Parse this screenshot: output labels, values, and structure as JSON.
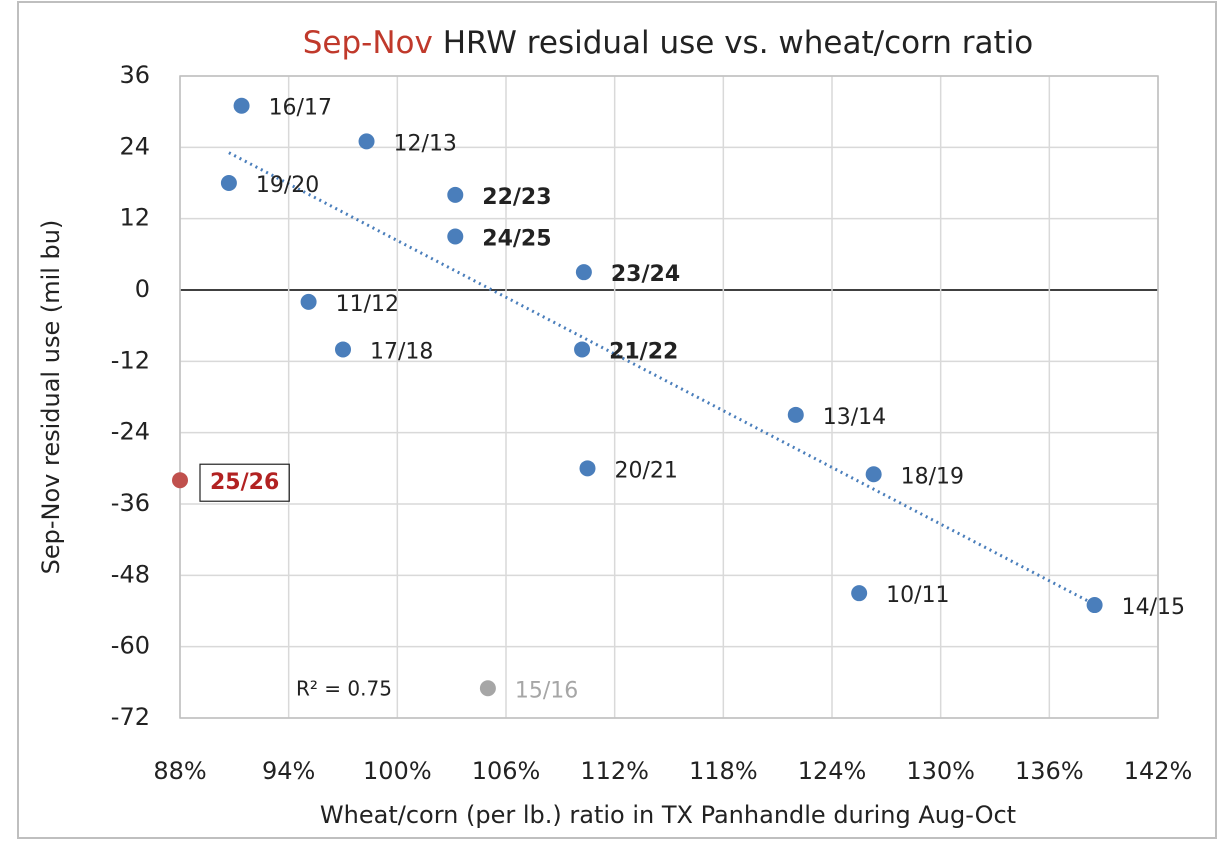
{
  "chart_data": {
    "type": "scatter",
    "title_highlight": "Sep-Nov",
    "title": "HRW residual use vs. wheat/corn ratio",
    "title_highlight_color": "#c0392b",
    "x_label": "Wheat/corn (per lb.) ratio in TX Panhandle during Aug-Oct",
    "y_label": "Sep-Nov residual use (mil bu)",
    "xlim": [
      88,
      142
    ],
    "xticks": [
      {
        "value": 88,
        "label": "88%"
      },
      {
        "value": 94,
        "label": "94%"
      },
      {
        "value": 100,
        "label": "100%"
      },
      {
        "value": 106,
        "label": "106%"
      },
      {
        "value": 112,
        "label": "112%"
      },
      {
        "value": 118,
        "label": "118%"
      },
      {
        "value": 124,
        "label": "124%"
      },
      {
        "value": 130,
        "label": "130%"
      },
      {
        "value": 136,
        "label": "136%"
      },
      {
        "value": 142,
        "label": "142%"
      }
    ],
    "ylim": [
      -72,
      36
    ],
    "yticks": [
      -72,
      -60,
      -48,
      -36,
      -24,
      -12,
      0,
      12,
      24,
      36
    ],
    "grid": true,
    "points": [
      {
        "label": "16/17",
        "x": 91.4,
        "y": 31,
        "color": "#4a7ebb",
        "label_color": "#222222",
        "bold": false
      },
      {
        "label": "12/13",
        "x": 98.3,
        "y": 25,
        "color": "#4a7ebb",
        "label_color": "#222222",
        "bold": false
      },
      {
        "label": "19/20",
        "x": 90.7,
        "y": 18,
        "color": "#4a7ebb",
        "label_color": "#222222",
        "bold": false
      },
      {
        "label": "22/23",
        "x": 103.2,
        "y": 16,
        "color": "#4a7ebb",
        "label_color": "#222222",
        "bold": true
      },
      {
        "label": "24/25",
        "x": 103.2,
        "y": 9,
        "color": "#4a7ebb",
        "label_color": "#222222",
        "bold": true
      },
      {
        "label": "23/24",
        "x": 110.3,
        "y": 3,
        "color": "#4a7ebb",
        "label_color": "#222222",
        "bold": true
      },
      {
        "label": "11/12",
        "x": 95.1,
        "y": -2,
        "color": "#4a7ebb",
        "label_color": "#222222",
        "bold": false
      },
      {
        "label": "17/18",
        "x": 97.0,
        "y": -10,
        "color": "#4a7ebb",
        "label_color": "#222222",
        "bold": false
      },
      {
        "label": "21/22",
        "x": 110.2,
        "y": -10,
        "color": "#4a7ebb",
        "label_color": "#222222",
        "bold": true
      },
      {
        "label": "13/14",
        "x": 122.0,
        "y": -21,
        "color": "#4a7ebb",
        "label_color": "#222222",
        "bold": false
      },
      {
        "label": "20/21",
        "x": 110.5,
        "y": -30,
        "color": "#4a7ebb",
        "label_color": "#222222",
        "bold": false
      },
      {
        "label": "18/19",
        "x": 126.3,
        "y": -31,
        "color": "#4a7ebb",
        "label_color": "#222222",
        "bold": false
      },
      {
        "label": "10/11",
        "x": 125.5,
        "y": -51,
        "color": "#4a7ebb",
        "label_color": "#222222",
        "bold": false
      },
      {
        "label": "14/15",
        "x": 138.5,
        "y": -53,
        "color": "#4a7ebb",
        "label_color": "#222222",
        "bold": false
      },
      {
        "label": "25/26",
        "x": 88,
        "y": -32,
        "color": "#c0504d",
        "label_color": "#b22222",
        "bold": true,
        "boxed": true
      },
      {
        "label": "15/16",
        "x": 105.0,
        "y": -67,
        "color": "#a6a6a6",
        "label_color": "#a6a6a6",
        "bold": false
      }
    ],
    "trendline": {
      "x": [
        90.7,
        138.5
      ],
      "y": [
        23.1,
        -52.9
      ],
      "color": "#4a7ebb",
      "r2_label": "R² = 0.75"
    }
  }
}
